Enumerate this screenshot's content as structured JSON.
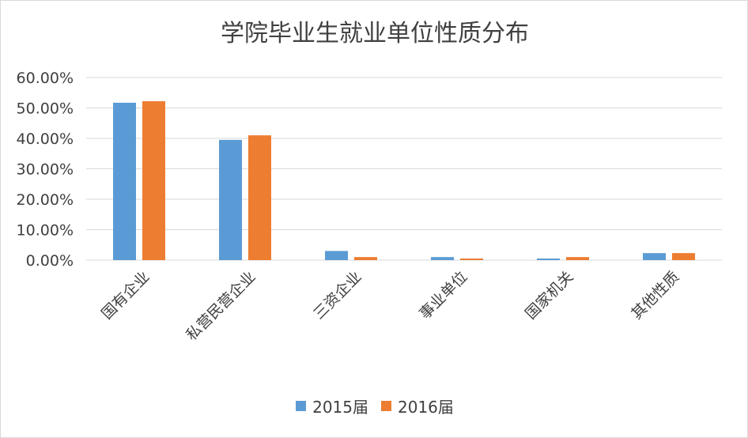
{
  "chart_data": {
    "type": "bar",
    "title": "学院毕业生就业单位性质分布",
    "xlabel": "",
    "ylabel": "",
    "categories": [
      "国有企业",
      "私营民营企业",
      "三资企业",
      "事业单位",
      "国家机关",
      "其他性质"
    ],
    "series": [
      {
        "name": "2015届",
        "color": "#5B9BD5",
        "values": [
          51.7,
          39.5,
          3.0,
          1.0,
          0.5,
          2.3
        ]
      },
      {
        "name": "2016届",
        "color": "#ED7D31",
        "values": [
          52.2,
          41.0,
          1.0,
          0.5,
          1.0,
          2.3
        ]
      }
    ],
    "yticks": [
      "0.00%",
      "10.00%",
      "20.00%",
      "30.00%",
      "40.00%",
      "50.00%",
      "60.00%"
    ],
    "ylim": [
      0,
      60
    ],
    "grid": true,
    "legend_position": "bottom"
  }
}
